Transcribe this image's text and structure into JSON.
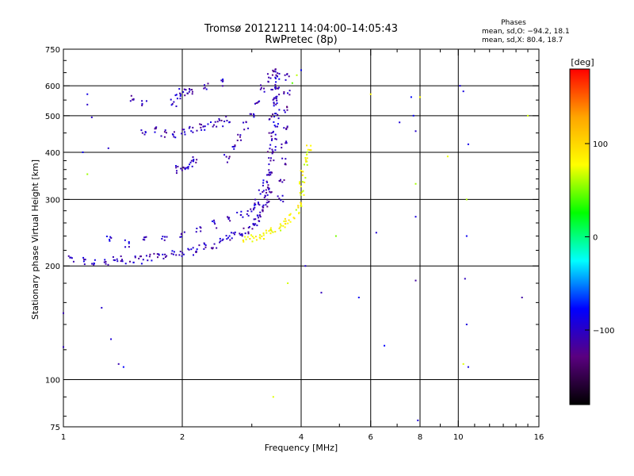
{
  "chart_data": {
    "type": "scatter",
    "title": "Tromsø 20121211 14:04:00–14:05:43",
    "subtitle": "RwPretec (8p)",
    "xlabel": "Frequency [MHz]",
    "ylabel": "Stationary phase Virtual Height [km]",
    "x_scale": "log",
    "y_scale": "log",
    "xlim": [
      1,
      16
    ],
    "ylim": [
      75,
      750
    ],
    "x_ticks": [
      1,
      2,
      4,
      6,
      8,
      10,
      16
    ],
    "x_tick_labels": [
      "1",
      "2",
      "4",
      "6",
      "8",
      "10",
      "16"
    ],
    "x_minor_ticks": [
      3,
      5,
      7,
      9,
      11,
      12,
      13,
      14,
      15
    ],
    "x_gridlines": [
      2,
      4,
      6,
      8,
      10
    ],
    "y_ticks": [
      75,
      100,
      200,
      300,
      400,
      500,
      600,
      750
    ],
    "y_tick_labels": [
      "75",
      "100",
      "200",
      "300",
      "400",
      "500",
      "600",
      "750"
    ],
    "y_gridlines": [
      100,
      200,
      300,
      400,
      500,
      600
    ],
    "grid": true,
    "stats": {
      "heading": "Phases",
      "line_o": "mean, sd,O: −94.2, 18.1",
      "line_x": "mean, sd,X:  80.4, 18.7"
    },
    "colorbar": {
      "label": "[deg]",
      "range": [
        -180,
        180
      ],
      "ticks": [
        100,
        0,
        -100
      ],
      "tick_labels": [
        "100",
        "0",
        "−100"
      ],
      "colors": [
        "#000000",
        "#5a0080",
        "#0000ff",
        "#00ffff",
        "#00ff00",
        "#ffff00",
        "#ffa500",
        "#ff0000"
      ]
    },
    "series": [
      {
        "trace": "o-mode lower",
        "phase_deg": -105,
        "points": [
          [
            1.05,
            208
          ],
          [
            1.12,
            206
          ],
          [
            1.2,
            205
          ],
          [
            1.28,
            206
          ],
          [
            1.35,
            207
          ],
          [
            1.42,
            207
          ],
          [
            1.5,
            208
          ],
          [
            1.58,
            208
          ],
          [
            1.65,
            210
          ],
          [
            1.72,
            211
          ],
          [
            1.8,
            212
          ],
          [
            1.9,
            214
          ],
          [
            2.0,
            216
          ],
          [
            2.1,
            219
          ],
          [
            2.2,
            222
          ],
          [
            2.3,
            225
          ],
          [
            2.4,
            228
          ],
          [
            2.5,
            232
          ],
          [
            2.6,
            236
          ],
          [
            2.7,
            240
          ],
          [
            2.8,
            245
          ],
          [
            2.9,
            250
          ],
          [
            3.0,
            256
          ],
          [
            3.05,
            262
          ],
          [
            3.1,
            268
          ],
          [
            3.15,
            275
          ],
          [
            3.2,
            283
          ],
          [
            3.25,
            292
          ],
          [
            3.3,
            302
          ],
          [
            3.35,
            315
          ]
        ]
      },
      {
        "trace": "o-mode upper",
        "phase_deg": -100,
        "points": [
          [
            1.3,
            235
          ],
          [
            1.45,
            230
          ],
          [
            1.6,
            235
          ],
          [
            1.8,
            238
          ],
          [
            2.0,
            244
          ],
          [
            2.2,
            250
          ],
          [
            2.4,
            258
          ],
          [
            2.6,
            266
          ],
          [
            2.8,
            272
          ],
          [
            2.95,
            278
          ],
          [
            3.05,
            285
          ],
          [
            3.1,
            296
          ],
          [
            3.18,
            310
          ],
          [
            3.25,
            330
          ],
          [
            3.3,
            355
          ],
          [
            3.35,
            380
          ],
          [
            3.4,
            410
          ],
          [
            3.42,
            440
          ],
          [
            3.44,
            470
          ],
          [
            3.46,
            500
          ],
          [
            3.47,
            530
          ],
          [
            3.48,
            560
          ],
          [
            3.49,
            600
          ],
          [
            3.5,
            640
          ]
        ]
      },
      {
        "trace": "vertical column",
        "phase_deg": -110,
        "points": [
          [
            3.3,
            320
          ],
          [
            3.32,
            350
          ],
          [
            3.35,
            400
          ],
          [
            3.36,
            450
          ],
          [
            3.38,
            500
          ],
          [
            3.4,
            550
          ],
          [
            3.42,
            600
          ],
          [
            3.44,
            650
          ],
          [
            3.55,
            300
          ],
          [
            3.58,
            340
          ],
          [
            3.6,
            380
          ],
          [
            3.62,
            420
          ],
          [
            3.64,
            460
          ],
          [
            3.66,
            520
          ],
          [
            3.68,
            580
          ],
          [
            3.7,
            630
          ]
        ]
      },
      {
        "trace": "diagonal 380-650",
        "phase_deg": -110,
        "points": [
          [
            2.6,
            385
          ],
          [
            2.7,
            410
          ],
          [
            2.8,
            440
          ],
          [
            2.9,
            470
          ],
          [
            3.0,
            505
          ],
          [
            3.1,
            545
          ],
          [
            3.2,
            590
          ],
          [
            3.3,
            630
          ],
          [
            3.4,
            650
          ]
        ]
      },
      {
        "trace": "band 450",
        "phase_deg": -105,
        "points": [
          [
            1.6,
            450
          ],
          [
            1.7,
            455
          ],
          [
            1.8,
            450
          ],
          [
            1.9,
            445
          ],
          [
            2.0,
            455
          ],
          [
            2.1,
            460
          ],
          [
            2.2,
            465
          ],
          [
            2.3,
            470
          ],
          [
            2.4,
            475
          ],
          [
            2.5,
            480
          ],
          [
            2.6,
            490
          ]
        ]
      },
      {
        "trace": "band 580",
        "phase_deg": -105,
        "points": [
          [
            1.9,
            540
          ],
          [
            1.95,
            560
          ],
          [
            2.0,
            575
          ],
          [
            2.05,
            580
          ],
          [
            2.1,
            580
          ],
          [
            1.5,
            560
          ],
          [
            1.6,
            540
          ],
          [
            2.3,
            600
          ],
          [
            2.5,
            610
          ]
        ]
      },
      {
        "trace": "band 370",
        "phase_deg": -105,
        "points": [
          [
            1.95,
            360
          ],
          [
            2.0,
            365
          ],
          [
            2.05,
            370
          ],
          [
            2.1,
            375
          ],
          [
            2.15,
            380
          ]
        ]
      },
      {
        "trace": "x-mode",
        "phase_deg": 80,
        "points": [
          [
            2.9,
            235
          ],
          [
            3.0,
            236
          ],
          [
            3.1,
            238
          ],
          [
            3.2,
            240
          ],
          [
            3.3,
            244
          ],
          [
            3.4,
            248
          ],
          [
            3.5,
            253
          ],
          [
            3.6,
            258
          ],
          [
            3.7,
            265
          ],
          [
            3.8,
            272
          ],
          [
            3.9,
            282
          ],
          [
            3.95,
            295
          ],
          [
            4.0,
            310
          ],
          [
            4.02,
            330
          ],
          [
            4.05,
            350
          ],
          [
            4.1,
            375
          ],
          [
            4.15,
            395
          ],
          [
            4.2,
            410
          ]
        ]
      },
      {
        "trace": "scattered",
        "phase_deg": -95,
        "points": [
          [
            1.15,
            535
          ],
          [
            1.18,
            495
          ],
          [
            1.3,
            410
          ],
          [
            1.38,
            110
          ],
          [
            1.42,
            108
          ],
          [
            1.25,
            155
          ],
          [
            1.32,
            128
          ],
          [
            1.0,
            150
          ],
          [
            1.12,
            400
          ],
          [
            4.0,
            660
          ],
          [
            4.1,
            200
          ],
          [
            4.5,
            170
          ],
          [
            5.6,
            165
          ],
          [
            6.2,
            245
          ],
          [
            6.5,
            123
          ],
          [
            7.1,
            480
          ],
          [
            7.6,
            560
          ],
          [
            7.7,
            500
          ],
          [
            7.8,
            455
          ],
          [
            7.8,
            270
          ],
          [
            7.8,
            183
          ],
          [
            7.9,
            78
          ],
          [
            10.1,
            600
          ],
          [
            10.3,
            580
          ],
          [
            10.6,
            420
          ],
          [
            10.5,
            240
          ],
          [
            10.4,
            185
          ],
          [
            10.5,
            140
          ],
          [
            10.6,
            108
          ],
          [
            14.5,
            165
          ],
          [
            1.0,
            122
          ],
          [
            1.15,
            570
          ]
        ]
      },
      {
        "trace": "scattered warm",
        "phase_deg": 60,
        "points": [
          [
            3.4,
            90
          ],
          [
            3.8,
            610
          ],
          [
            3.9,
            640
          ],
          [
            4.9,
            240
          ],
          [
            6.0,
            570
          ],
          [
            8.0,
            560
          ],
          [
            7.8,
            330
          ],
          [
            9.4,
            390
          ],
          [
            10.3,
            110
          ],
          [
            10.5,
            300
          ],
          [
            15.0,
            500
          ],
          [
            1.15,
            350
          ],
          [
            3.7,
            180
          ]
        ]
      }
    ]
  }
}
